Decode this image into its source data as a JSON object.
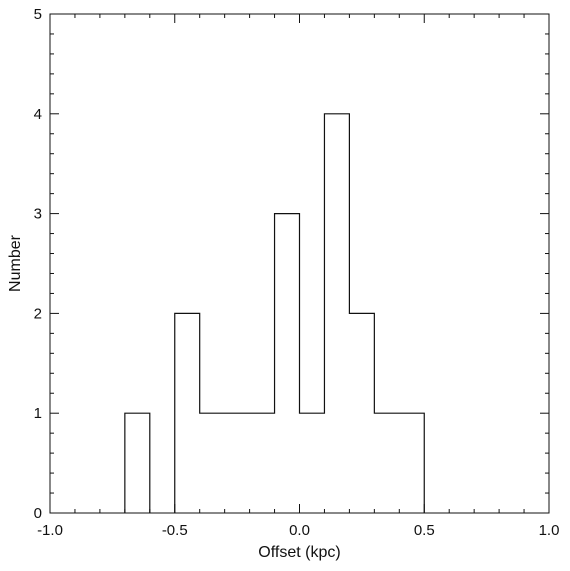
{
  "chart_data": {
    "type": "bar",
    "style": "step-histogram",
    "xlabel": "Offset (kpc)",
    "ylabel": "Number",
    "xlim": [
      -1.0,
      1.0
    ],
    "ylim": [
      0,
      5
    ],
    "x_ticks": [
      -1.0,
      -0.5,
      0.0,
      0.5,
      1.0
    ],
    "x_tick_labels": [
      "-1.0",
      "-0.5",
      "0.0",
      "0.5",
      "1.0"
    ],
    "y_ticks": [
      0,
      1,
      2,
      3,
      4,
      5
    ],
    "y_tick_labels": [
      "0",
      "1",
      "2",
      "3",
      "4",
      "5"
    ],
    "x_minor_step": 0.1,
    "y_minor_step": 0.2,
    "bin_width": 0.1,
    "bin_edges": [
      -0.7,
      -0.6,
      -0.5,
      -0.4,
      -0.3,
      -0.2,
      -0.1,
      0.0,
      0.1,
      0.2,
      0.3,
      0.4,
      0.5
    ],
    "values": [
      1,
      0,
      2,
      1,
      1,
      1,
      3,
      1,
      4,
      2,
      1,
      1
    ],
    "grid": false,
    "colors": {
      "line": "#111111",
      "background": "#ffffff"
    }
  }
}
